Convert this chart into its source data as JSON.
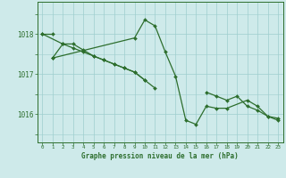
{
  "title": "Graphe pression niveau de la mer (hPa)",
  "hours": [
    0,
    1,
    2,
    3,
    4,
    5,
    6,
    7,
    8,
    9,
    10,
    11,
    12,
    13,
    14,
    15,
    16,
    17,
    18,
    19,
    20,
    21,
    22,
    23
  ],
  "background_color": "#ceeaea",
  "grid_color": "#9ecece",
  "line_color": "#2d6e2d",
  "ylim": [
    1015.3,
    1018.8
  ],
  "yticks": [
    1016,
    1017,
    1018
  ],
  "series": [
    [
      1018.0,
      1018.0,
      null,
      null,
      null,
      null,
      null,
      null,
      null,
      null,
      null,
      null,
      null,
      null,
      null,
      null,
      null,
      null,
      null,
      null,
      null,
      null,
      null,
      null
    ],
    [
      1018.0,
      null,
      1017.75,
      1017.75,
      1017.6,
      1017.45,
      1017.35,
      1017.25,
      1017.15,
      1017.05,
      1016.85,
      1016.65,
      null,
      null,
      null,
      null,
      null,
      null,
      null,
      null,
      null,
      null,
      null,
      null
    ],
    [
      null,
      1017.4,
      1017.75,
      1017.65,
      1017.55,
      1017.45,
      1017.35,
      1017.25,
      1017.15,
      1017.05,
      1016.85,
      null,
      null,
      null,
      null,
      null,
      null,
      null,
      null,
      null,
      null,
      null,
      null,
      null
    ],
    [
      null,
      1017.4,
      null,
      null,
      null,
      null,
      null,
      null,
      null,
      1017.9,
      1018.35,
      1018.2,
      1017.55,
      1016.95,
      1015.85,
      1015.75,
      1016.2,
      1016.15,
      1016.15,
      null,
      1016.35,
      1016.2,
      1015.95,
      1015.9
    ],
    [
      null,
      null,
      null,
      null,
      null,
      null,
      null,
      null,
      null,
      null,
      null,
      null,
      null,
      null,
      null,
      null,
      1016.55,
      1016.45,
      1016.35,
      1016.45,
      1016.2,
      1016.1,
      1015.95,
      1015.85
    ]
  ],
  "marker_size": 2.0,
  "line_width": 0.9
}
